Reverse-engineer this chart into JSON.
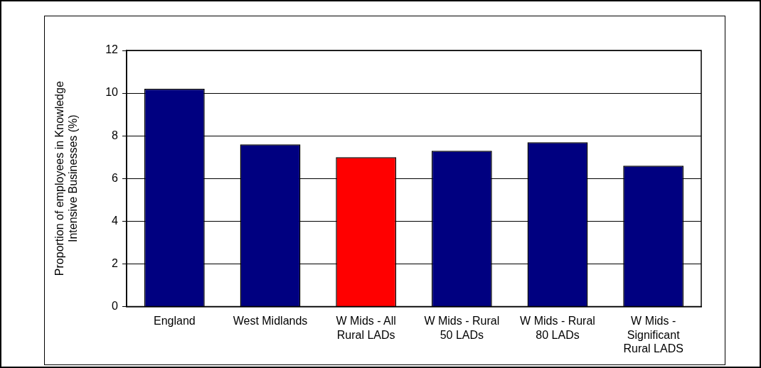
{
  "chart_data": {
    "type": "bar",
    "ylabel": "Proportion of employees in Knowledge Intensive Businesses (%)",
    "categories": [
      "England",
      "West Midlands",
      "W Mids - All Rural LADs",
      "W Mids - Rural 50 LADs",
      "W Mids - Rural 80 LADs",
      "W Mids - Significant Rural LADS"
    ],
    "values": [
      10.2,
      7.6,
      7.0,
      7.3,
      7.7,
      6.6
    ],
    "colors": [
      "#000080",
      "#000080",
      "#ff0000",
      "#000080",
      "#000080",
      "#000080"
    ],
    "ylim": [
      0,
      12
    ],
    "yticks": [
      0,
      2,
      4,
      6,
      8,
      10,
      12
    ],
    "grid": "y",
    "legend": false
  }
}
